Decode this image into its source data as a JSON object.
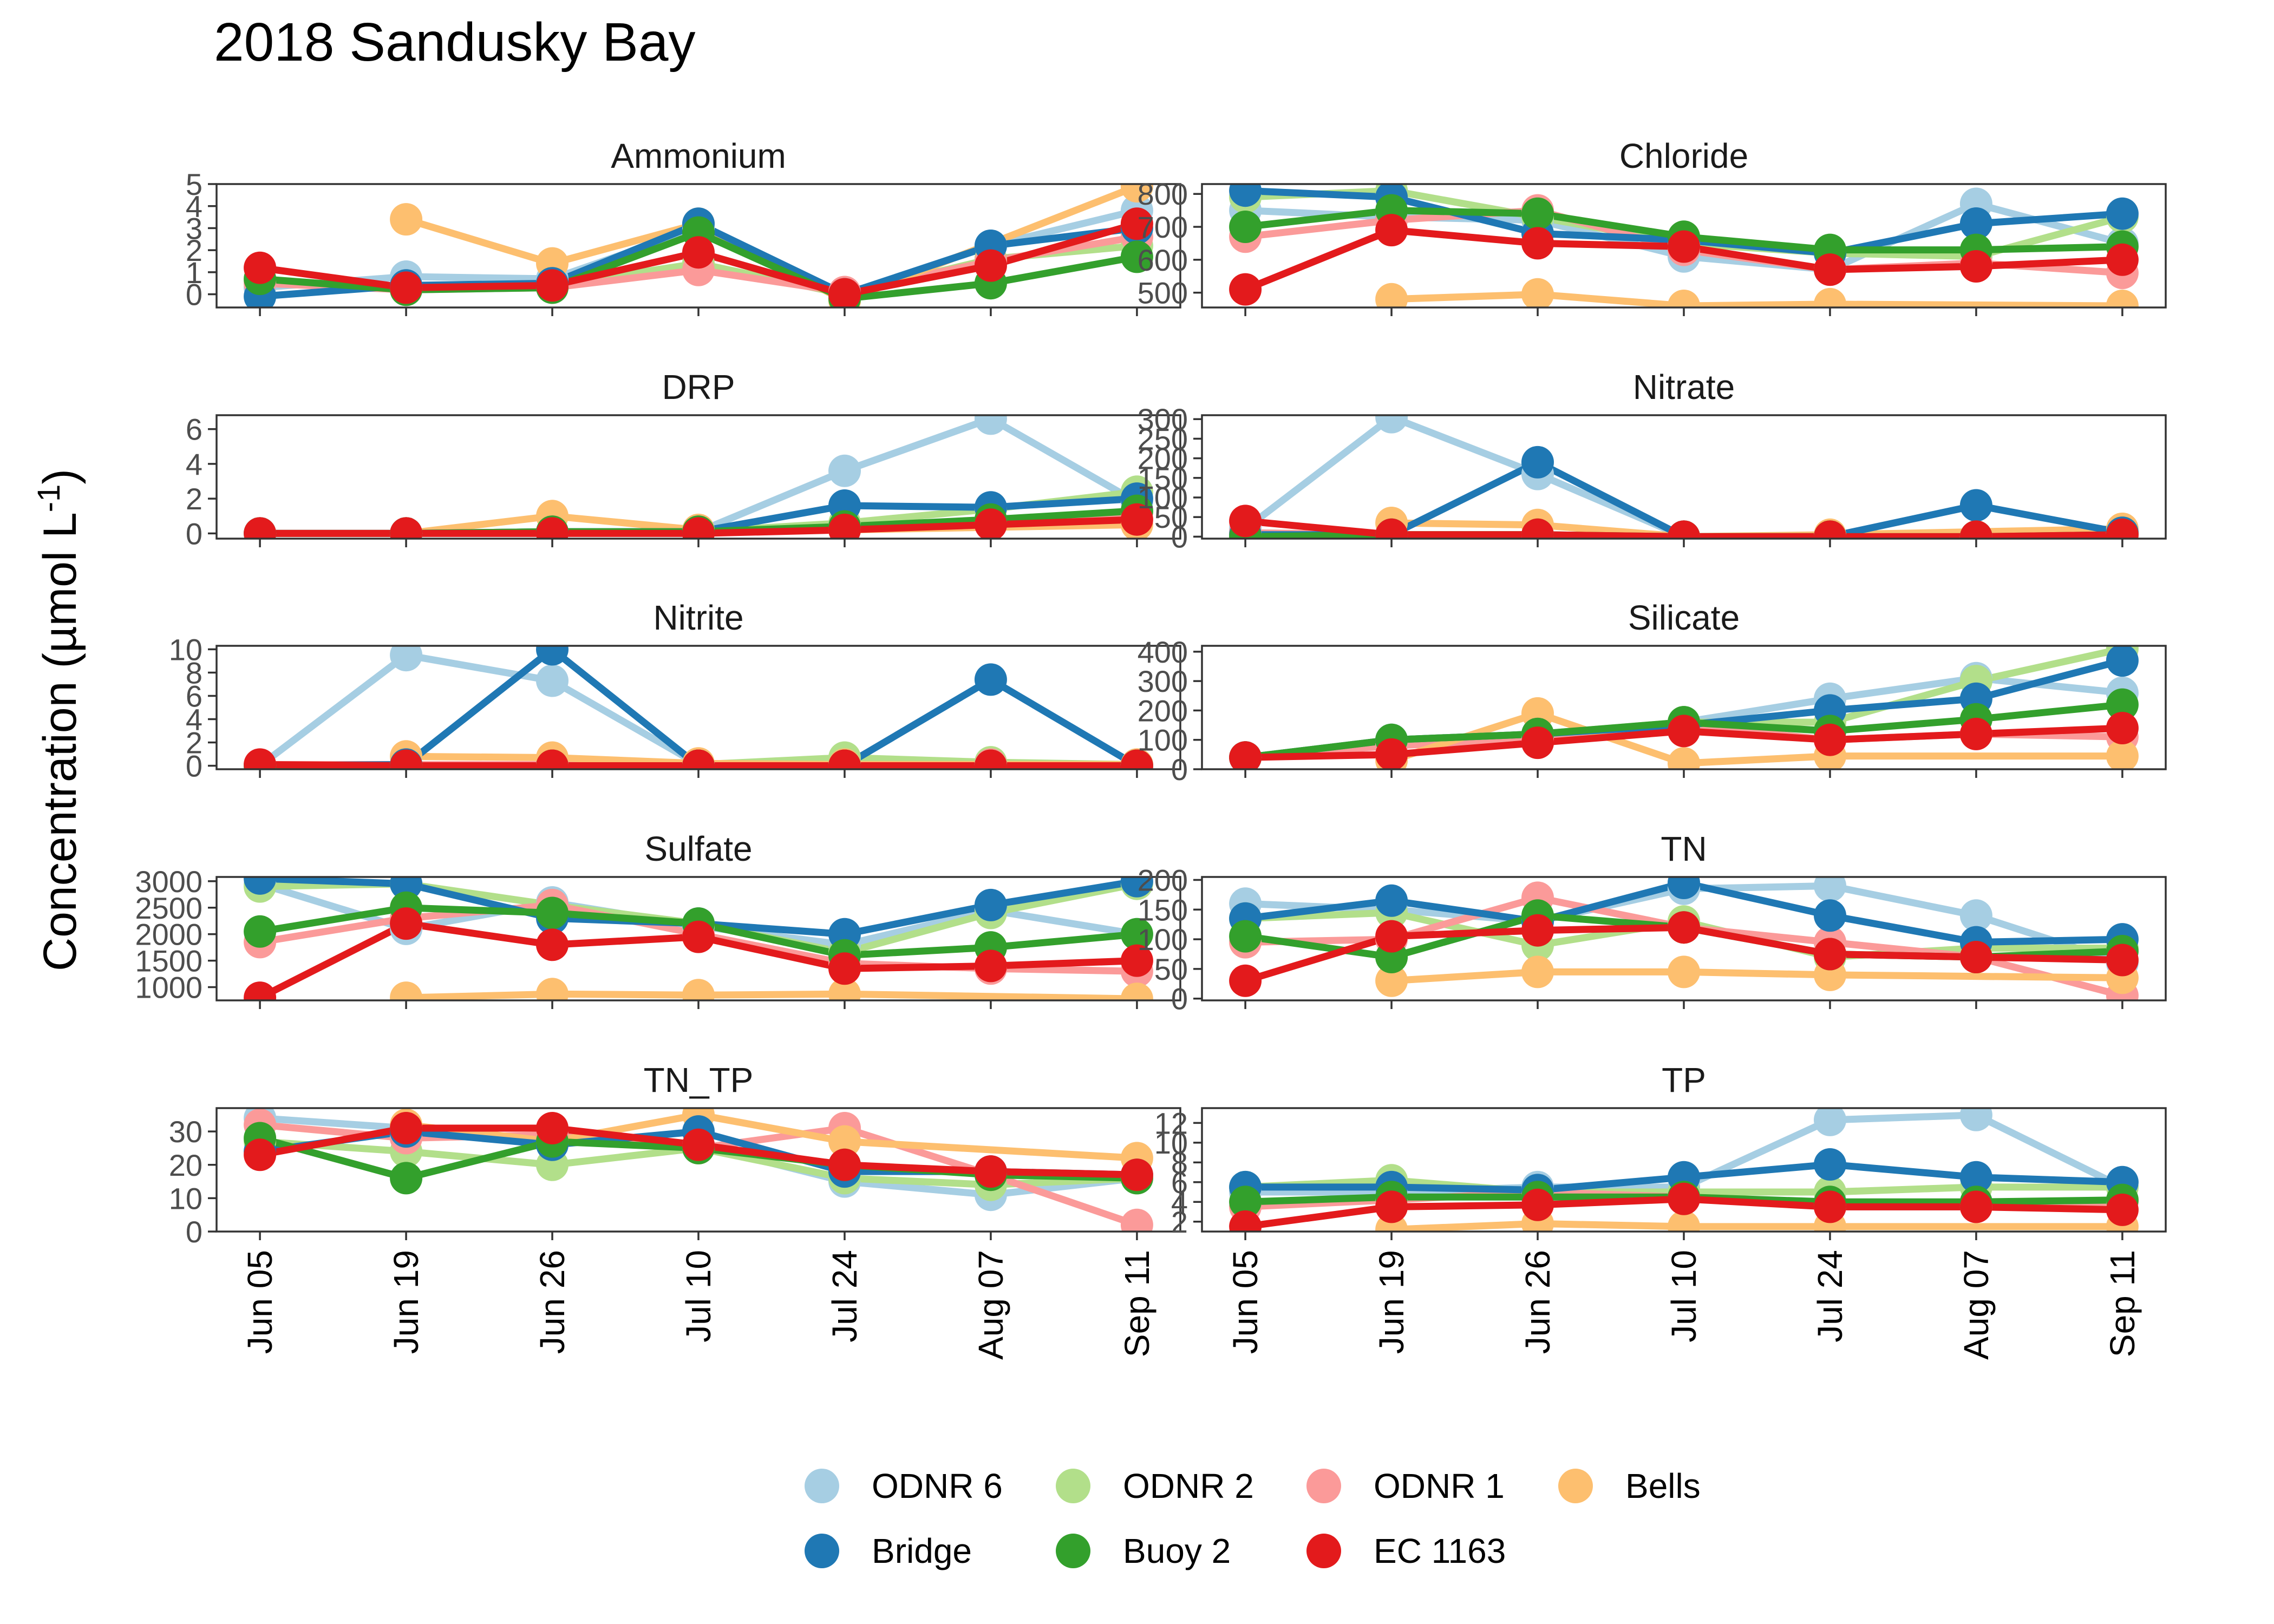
{
  "title": "2018 Sandusky Bay",
  "chart_data": {
    "type": "line",
    "title": "2018 Sandusky Bay",
    "ylabel": "Concentration (µmol L",
    "ylabel_superscript": "-1",
    "ylabel_close": ")",
    "xlabel": "",
    "dates": [
      "Jun 05",
      "Jun 19",
      "Jun 26",
      "Jul 10",
      "Jul 24",
      "Aug 07",
      "Sep 11"
    ],
    "legend_position": "bottom",
    "series": [
      {
        "name": "ODNR 6",
        "color": "#A6CEE3"
      },
      {
        "name": "ODNR 2",
        "color": "#B2DF8A"
      },
      {
        "name": "ODNR 1",
        "color": "#FB9A99"
      },
      {
        "name": "Bells",
        "color": "#FDBF6F"
      },
      {
        "name": "Bridge",
        "color": "#1F78B4"
      },
      {
        "name": "Buoy 2",
        "color": "#33A02C"
      },
      {
        "name": "EC 1163",
        "color": "#E31A1C"
      }
    ],
    "panels": [
      {
        "name": "Ammonium",
        "ylim": [
          -0.6,
          5.0
        ],
        "yticks": [
          0,
          1,
          2,
          3,
          4,
          5
        ],
        "values": {
          "ODNR 6": [
            0.3,
            0.8,
            0.7,
            3.0,
            0.0,
            2.2,
            3.8
          ],
          "ODNR 2": [
            0.6,
            0.3,
            0.4,
            1.4,
            0.0,
            1.6,
            2.2
          ],
          "ODNR 1": [
            0.5,
            0.2,
            0.3,
            1.1,
            0.1,
            1.5,
            2.6
          ],
          "Bells": [
            null,
            3.4,
            1.4,
            3.2,
            -0.3,
            null,
            4.9
          ],
          "Bridge": [
            -0.1,
            0.4,
            0.5,
            3.2,
            0.0,
            2.2,
            3.0
          ],
          "Buoy 2": [
            0.7,
            0.2,
            0.3,
            2.8,
            -0.2,
            0.5,
            1.7
          ],
          "EC 1163": [
            1.2,
            0.3,
            0.4,
            1.9,
            0.0,
            1.3,
            3.2
          ]
        }
      },
      {
        "name": "Chloride",
        "ylim": [
          455,
          830
        ],
        "yticks": [
          500,
          600,
          700,
          800
        ],
        "values": {
          "ODNR 6": [
            750,
            730,
            720,
            610,
            570,
            770,
            650
          ],
          "ODNR 2": [
            790,
            810,
            730,
            650,
            620,
            610,
            730
          ],
          "ODNR 1": [
            670,
            720,
            750,
            630,
            570,
            590,
            560
          ],
          "Bells": [
            null,
            480,
            495,
            460,
            465,
            null,
            460
          ],
          "Bridge": [
            810,
            790,
            680,
            660,
            620,
            710,
            740
          ],
          "Buoy 2": [
            700,
            750,
            740,
            670,
            630,
            630,
            640
          ],
          "EC 1163": [
            510,
            690,
            650,
            640,
            570,
            580,
            600
          ]
        }
      },
      {
        "name": "DRP",
        "ylim": [
          -0.3,
          6.8
        ],
        "yticks": [
          0,
          2,
          4,
          6
        ],
        "values": {
          "ODNR 6": [
            0.0,
            0.0,
            0.1,
            0.1,
            3.6,
            6.6,
            1.8
          ],
          "ODNR 2": [
            0.0,
            0.0,
            0.1,
            0.1,
            0.6,
            1.4,
            2.4
          ],
          "ODNR 1": [
            0.0,
            0.0,
            0.1,
            0.1,
            0.3,
            0.8,
            1.2
          ],
          "Bells": [
            null,
            0.0,
            1.0,
            0.2,
            0.2,
            null,
            0.5
          ],
          "Bridge": [
            0.0,
            0.0,
            0.1,
            0.1,
            1.6,
            1.5,
            2.0
          ],
          "Buoy 2": [
            0.0,
            0.0,
            0.1,
            0.1,
            0.4,
            0.8,
            1.3
          ],
          "EC 1163": [
            0.0,
            0.0,
            0.0,
            0.0,
            0.2,
            0.5,
            0.8
          ]
        }
      },
      {
        "name": "Nitrate",
        "ylim": [
          -5,
          310
        ],
        "yticks": [
          0,
          50,
          100,
          150,
          200,
          250,
          300
        ],
        "values": {
          "ODNR 6": [
            20,
            305,
            160,
            0,
            0,
            0,
            10
          ],
          "ODNR 2": [
            10,
            5,
            5,
            0,
            0,
            0,
            10
          ],
          "ODNR 1": [
            10,
            5,
            5,
            0,
            0,
            0,
            10
          ],
          "Bells": [
            null,
            35,
            30,
            0,
            5,
            null,
            20
          ],
          "Bridge": [
            5,
            5,
            190,
            0,
            0,
            80,
            10
          ],
          "Buoy 2": [
            0,
            5,
            5,
            0,
            0,
            0,
            5
          ],
          "EC 1163": [
            40,
            5,
            5,
            0,
            0,
            0,
            5
          ]
        }
      },
      {
        "name": "Nitrite",
        "ylim": [
          -0.3,
          10.3
        ],
        "yticks": [
          0,
          2,
          4,
          6,
          8,
          10
        ],
        "values": {
          "ODNR 6": [
            0.0,
            9.5,
            7.3,
            0.1,
            0.1,
            0.1,
            0.0
          ],
          "ODNR 2": [
            0.0,
            0.0,
            0.1,
            0.1,
            0.7,
            0.3,
            0.1
          ],
          "ODNR 1": [
            0.1,
            0.1,
            0.1,
            0.1,
            0.1,
            0.1,
            0.1
          ],
          "Bells": [
            null,
            0.8,
            0.7,
            0.2,
            0.1,
            null,
            0.1
          ],
          "Bridge": [
            0.0,
            0.1,
            10.0,
            0.0,
            0.0,
            7.4,
            0.0
          ],
          "Buoy 2": [
            0.0,
            0.0,
            0.0,
            0.0,
            0.0,
            0.0,
            0.0
          ],
          "EC 1163": [
            0.1,
            0.0,
            0.0,
            0.0,
            0.0,
            0.0,
            0.0
          ]
        }
      },
      {
        "name": "Silicate",
        "ylim": [
          0,
          420
        ],
        "yticks": [
          0,
          100,
          200,
          300,
          400
        ],
        "values": {
          "ODNR 6": [
            40,
            80,
            110,
            160,
            240,
            310,
            260
          ],
          "ODNR 2": [
            40,
            100,
            120,
            160,
            160,
            300,
            410
          ],
          "ODNR 1": [
            40,
            80,
            100,
            150,
            100,
            120,
            110
          ],
          "Bells": [
            null,
            30,
            190,
            20,
            45,
            null,
            45
          ],
          "Bridge": [
            40,
            100,
            120,
            150,
            200,
            240,
            370
          ],
          "Buoy 2": [
            40,
            100,
            120,
            160,
            130,
            170,
            220
          ],
          "EC 1163": [
            40,
            50,
            90,
            130,
            100,
            120,
            140
          ]
        }
      },
      {
        "name": "Sulfate",
        "ylim": [
          750,
          3080
        ],
        "yticks": [
          1000,
          1500,
          2000,
          2500,
          3000
        ],
        "values": {
          "ODNR 6": [
            2950,
            2100,
            2600,
            2150,
            1800,
            2450,
            2000
          ],
          "ODNR 2": [
            2900,
            2950,
            2550,
            2200,
            1650,
            2400,
            2950
          ],
          "ODNR 1": [
            1850,
            2300,
            2550,
            2000,
            1450,
            1350,
            1300
          ],
          "Bells": [
            null,
            800,
            870,
            850,
            870,
            null,
            780
          ],
          "Bridge": [
            3050,
            2950,
            2300,
            2200,
            2000,
            2550,
            3000
          ],
          "Buoy 2": [
            2050,
            2500,
            2400,
            2200,
            1600,
            1750,
            2000
          ],
          "EC 1163": [
            800,
            2200,
            1800,
            1950,
            1350,
            1400,
            1500
          ]
        }
      },
      {
        "name": "TN",
        "ylim": [
          -3,
          205
        ],
        "yticks": [
          0,
          50,
          100,
          150,
          200
        ],
        "values": {
          "ODNR 6": [
            160,
            150,
            130,
            185,
            190,
            140,
            60
          ],
          "ODNR 2": [
            135,
            145,
            90,
            130,
            70,
            85,
            85
          ],
          "ODNR 1": [
            95,
            100,
            170,
            120,
            95,
            70,
            5
          ],
          "Bells": [
            null,
            30,
            45,
            45,
            40,
            null,
            35
          ],
          "Bridge": [
            135,
            165,
            130,
            195,
            140,
            95,
            100
          ],
          "Buoy 2": [
            105,
            70,
            140,
            120,
            75,
            70,
            80
          ],
          "EC 1163": [
            30,
            105,
            115,
            120,
            75,
            70,
            65
          ]
        }
      },
      {
        "name": "TN_TP",
        "ylim": [
          0,
          37
        ],
        "yticks": [
          0,
          10,
          20,
          30
        ],
        "values": {
          "ODNR 6": [
            34,
            31,
            27,
            26,
            15,
            11,
            16
          ],
          "ODNR 2": [
            27,
            24,
            20,
            25,
            16,
            14,
            16
          ],
          "ODNR 1": [
            32,
            28,
            29,
            25,
            31,
            17,
            2
          ],
          "Bells": [
            null,
            32,
            27,
            35,
            27,
            null,
            22
          ],
          "Bridge": [
            24,
            30,
            26,
            30,
            18,
            18,
            17
          ],
          "Buoy 2": [
            28,
            16,
            27,
            25,
            20,
            17,
            16
          ],
          "EC 1163": [
            23,
            31,
            31,
            26,
            20,
            18,
            17
          ]
        }
      },
      {
        "name": "TP",
        "ylim": [
          1,
          13.5
        ],
        "yticks": [
          2,
          4,
          6,
          8,
          10,
          12
        ],
        "values": {
          "ODNR 6": [
            5,
            5,
            5.5,
            5.5,
            12.3,
            12.8,
            5.5
          ],
          "ODNR 2": [
            5.5,
            6.2,
            5,
            5,
            5,
            5.5,
            5.5
          ],
          "ODNR 1": [
            3.5,
            4.2,
            5,
            4.5,
            3.5,
            3.5,
            4
          ],
          "Bells": [
            null,
            1.2,
            1.8,
            1.5,
            1.5,
            null,
            1.5
          ],
          "Bridge": [
            5.5,
            5.5,
            5.2,
            6.5,
            7.8,
            6.5,
            6
          ],
          "Buoy 2": [
            4,
            4.5,
            4.5,
            4.5,
            4,
            4,
            4.2
          ],
          "EC 1163": [
            1.5,
            3.5,
            3.7,
            4.3,
            3.5,
            3.5,
            3.2
          ]
        }
      }
    ]
  }
}
